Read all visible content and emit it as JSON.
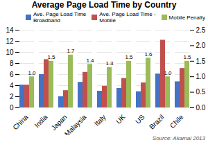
{
  "chart_data": {
    "type": "bar",
    "title": "Average Page Load Time by Country",
    "categories": [
      "China",
      "India",
      "Japan",
      "Malaysia",
      "Italy",
      "UK",
      "US",
      "Brazil",
      "Chile"
    ],
    "series": [
      {
        "name": "Ave. Page Load Time\nBroadband",
        "color": "#4472C4",
        "values": [
          4.1,
          6.0,
          2.0,
          4.6,
          3.0,
          3.5,
          2.9,
          6.1,
          4.7
        ]
      },
      {
        "name": "Ave. Page Load Time -\nMobile",
        "color": "#C0504D",
        "values": [
          4.1,
          8.7,
          3.1,
          6.4,
          3.9,
          5.3,
          4.5,
          12.2,
          7.1
        ]
      },
      {
        "name": "Mobile Penalty",
        "color": "#9BBB59",
        "axis": "y2",
        "values": [
          1.0,
          1.5,
          1.7,
          1.4,
          1.3,
          1.5,
          1.6,
          1.0,
          1.5
        ],
        "data_labels": true,
        "value_labels": [
          "1.0",
          "1.5",
          "1.7",
          "1.4",
          "1.3",
          "1.5",
          "1.6",
          "1.0",
          "1.5"
        ]
      }
    ],
    "ylim": [
      0,
      14
    ],
    "yticks": [
      0,
      2,
      4,
      6,
      8,
      10,
      12,
      14
    ],
    "y2lim": [
      0,
      2.5
    ],
    "y2ticks": [
      {
        "value": 0,
        "label": "0.0"
      },
      0.5,
      {
        "value": 1,
        "label": "1.0"
      },
      1.5,
      {
        "value": 2,
        "label": "2.0"
      },
      2.5
    ],
    "grid": true,
    "legend": "upper right",
    "annotations": [
      "Source: Akamai 2013"
    ]
  }
}
